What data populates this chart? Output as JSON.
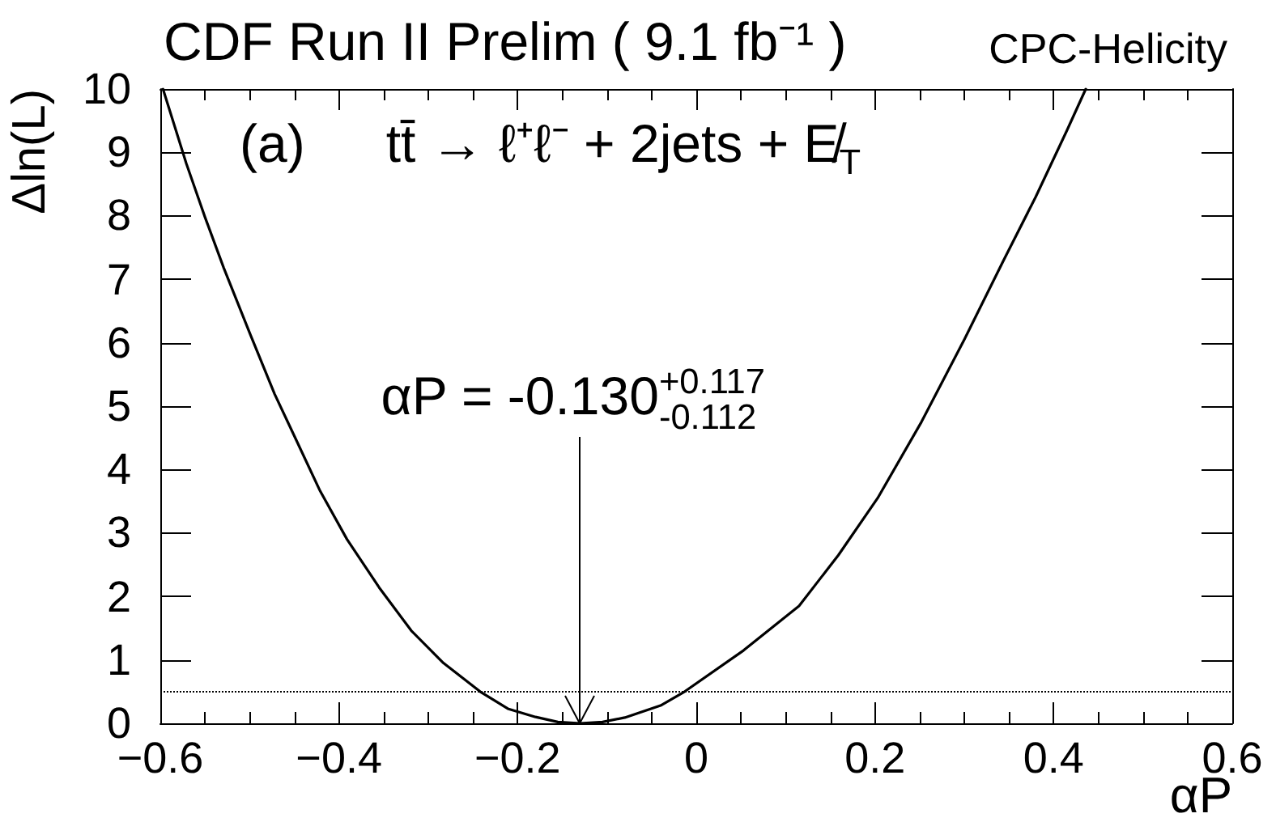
{
  "chart_data": {
    "type": "line",
    "title": "CDF Run II Prelim ( 9.1 fb⁻¹ )",
    "subtitle": "CPC-Helicity",
    "xlabel": "αP",
    "ylabel": "Δln(L)",
    "annotations": [
      "(a)",
      "tt̄ → ℓ⁺ℓ⁻ + 2jets + E̸$_{T}$",
      {
        "text": "αP = -0.130$^{+0.117}$$_{-0.112}$",
        "x": -0.13,
        "y": 0
      }
    ],
    "x": [
      -0.597,
      -0.571,
      -0.55,
      -0.529,
      -0.499,
      -0.472,
      -0.448,
      -0.421,
      -0.391,
      -0.355,
      -0.319,
      -0.283,
      -0.242,
      -0.211,
      -0.18,
      -0.155,
      -0.13,
      -0.105,
      -0.08,
      -0.04,
      -0.013,
      0.053,
      0.115,
      0.159,
      0.203,
      0.252,
      0.3,
      0.344,
      0.38,
      0.415,
      0.436
    ],
    "values": [
      10,
      8.83,
      7.98,
      7.18,
      6.12,
      5.19,
      4.47,
      3.66,
      2.9,
      2.14,
      1.46,
      0.95,
      0.5,
      0.23,
      0.1,
      0.02,
      0,
      0.02,
      0.09,
      0.28,
      0.5,
      1.15,
      1.85,
      2.65,
      3.55,
      4.75,
      6.05,
      7.3,
      8.3,
      9.35,
      10
    ],
    "color": "#000000",
    "marker": "none",
    "line_style": "solid",
    "xlim": [
      -0.6,
      0.6
    ],
    "xticks": [
      -0.6,
      -0.4,
      -0.2,
      0,
      0.2,
      0.4,
      0.6
    ],
    "ylim": [
      0,
      10
    ],
    "yticks": [
      0,
      1,
      2,
      3,
      4,
      5,
      6,
      7,
      8,
      9,
      10
    ],
    "ref_lines": [
      {
        "axis": "y",
        "value": 0.5,
        "line_style": "dotted",
        "color": "#000000"
      }
    ]
  }
}
